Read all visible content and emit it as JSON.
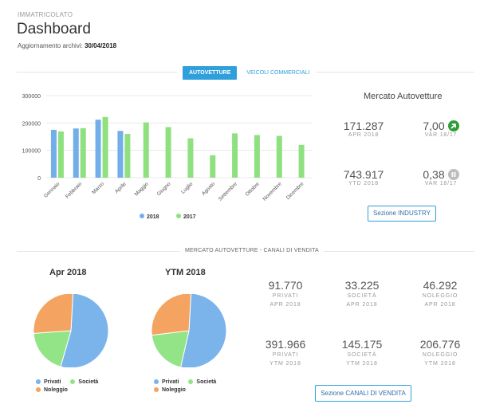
{
  "header": {
    "eyebrow": "IMMATRICOLATO",
    "title": "Dashboard",
    "updated_label": "Aggiornamento archivi:",
    "updated_date": "30/04/2018"
  },
  "tabs": [
    {
      "label": "AUTOVETTURE",
      "active": true
    },
    {
      "label": "VEICOLI COMMERCIALI",
      "active": false
    }
  ],
  "colors": {
    "accent": "#2fa0db",
    "series2018": "#74aee9",
    "series2017": "#8fe07f",
    "privati": "#7bb3eb",
    "societa": "#93e387",
    "noleggio": "#f4a460",
    "up_arrow": "#2e9e3a",
    "pause": "#bdbdbd"
  },
  "chart_data": {
    "type": "bar",
    "categories": [
      "Gennaio",
      "Febbraio",
      "Marzo",
      "Aprile",
      "Maggio",
      "Giugno",
      "Luglio",
      "Agosto",
      "Settembre",
      "Ottobre",
      "Novembre",
      "Dicembre"
    ],
    "series": [
      {
        "name": "2018",
        "values": [
          175000,
          180000,
          212000,
          171000,
          null,
          null,
          null,
          null,
          null,
          null,
          null,
          null
        ]
      },
      {
        "name": "2017",
        "values": [
          169000,
          181000,
          222000,
          160000,
          202000,
          185000,
          144000,
          82000,
          162000,
          156000,
          153000,
          120000
        ]
      }
    ],
    "yticks": [
      "300000",
      "200000",
      "100000",
      "0"
    ],
    "ylim": [
      0,
      300000
    ],
    "legend": [
      "2018",
      "2017"
    ],
    "legend_position": "bottom"
  },
  "market": {
    "title": "Mercato Autovetture",
    "kpis": [
      {
        "value": "171.287",
        "label": "APR 2018"
      },
      {
        "value": "7,00",
        "label": "VAR 18/17",
        "icon": "arrow-up-right-icon"
      },
      {
        "value": "743.917",
        "label": "YTD 2018"
      },
      {
        "value": "0,38",
        "label": "VAR 18/17",
        "icon": "pause-icon"
      }
    ],
    "button": "Sezione INDUSTRY"
  },
  "channels": {
    "section_label": "MERCATO AUTOVETTURE - CANALI DI VENDITA",
    "pie_apr": {
      "title": "Apr 2018",
      "values": [
        {
          "name": "Privati",
          "value": 91770
        },
        {
          "name": "Società",
          "value": 33225
        },
        {
          "name": "Noleggio",
          "value": 46292
        }
      ]
    },
    "pie_ytd": {
      "title": "YTM 2018",
      "values": [
        {
          "name": "Privati",
          "value": 391966
        },
        {
          "name": "Società",
          "value": 145175
        },
        {
          "name": "Noleggio",
          "value": 206776
        }
      ]
    },
    "legend": {
      "privati": "Privati",
      "societa": "Società",
      "noleggio": "Noleggio"
    },
    "stats": [
      {
        "value": "91.770",
        "label1": "PRIVATI",
        "label2": "APR 2018"
      },
      {
        "value": "33.225",
        "label1": "SOCIETÀ",
        "label2": "APR 2018"
      },
      {
        "value": "46.292",
        "label1": "NOLEGGIO",
        "label2": "APR 2018"
      },
      {
        "value": "391.966",
        "label1": "PRIVATI",
        "label2": "YTM 2018"
      },
      {
        "value": "145.175",
        "label1": "SOCIETÀ",
        "label2": "YTM 2018"
      },
      {
        "value": "206.776",
        "label1": "NOLEGGIO",
        "label2": "YTM 2018"
      }
    ],
    "button": "Sezione CANALI DI VENDITA"
  }
}
